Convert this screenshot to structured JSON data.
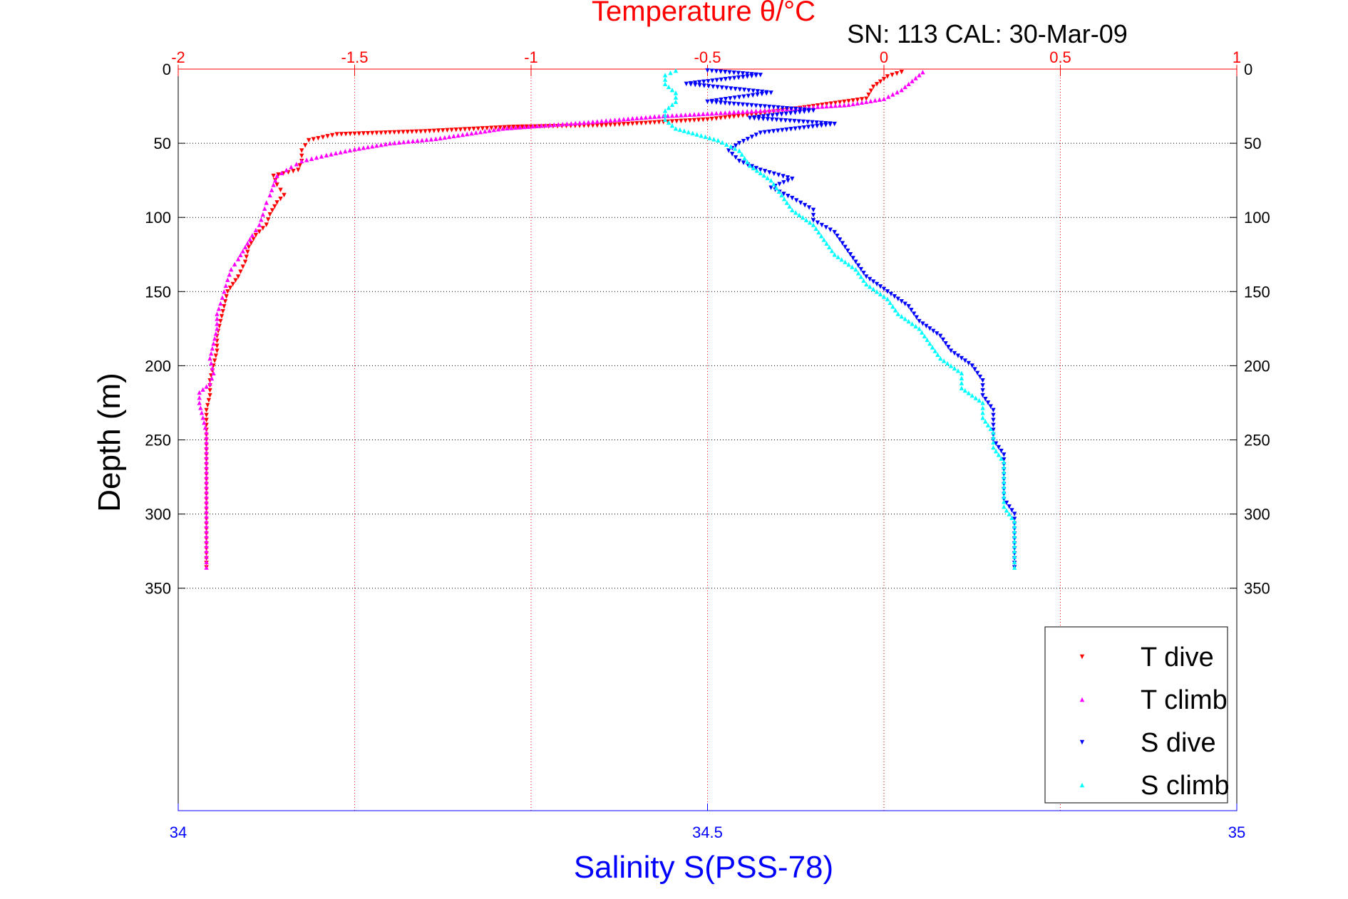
{
  "chart_data": {
    "type": "scatter",
    "title": "Temperature θ/°C",
    "subtitle": "SN: 113  CAL: 30-Mar-09",
    "ylabel": "Depth (m)",
    "xlabel_bottom": "Salinity S(PSS-78)",
    "top_axis": {
      "label": "Temperature θ/°C",
      "range": [
        -2,
        1
      ],
      "ticks": [
        -2,
        -1.5,
        -1,
        -0.5,
        0,
        0.5,
        1
      ],
      "tick_labels": [
        "-2",
        "-1.5",
        "-1",
        "-0.5",
        "0",
        "0.5",
        "1"
      ]
    },
    "bottom_axis": {
      "label": "Salinity S(PSS-78)",
      "range": [
        34,
        35
      ],
      "ticks": [
        34,
        34.5,
        35
      ],
      "tick_labels": [
        "34",
        "34.5",
        "35"
      ]
    },
    "y_axis": {
      "range": [
        0,
        500
      ],
      "reversed": true,
      "ticks": [
        0,
        50,
        100,
        150,
        200,
        250,
        300,
        350
      ],
      "tick_labels": [
        "0",
        "50",
        "100",
        "150",
        "200",
        "250",
        "300",
        "350"
      ]
    },
    "grid": true,
    "legend_position": "bottom-right",
    "series": [
      {
        "name": "T dive",
        "axis": "temperature",
        "color": "#ff0000",
        "marker": "triangle-down",
        "points": [
          [
            0.05,
            2
          ],
          [
            0.01,
            5
          ],
          [
            -0.03,
            12
          ],
          [
            -0.05,
            20
          ],
          [
            -0.2,
            25
          ],
          [
            -0.35,
            30
          ],
          [
            -0.5,
            34
          ],
          [
            -0.8,
            38
          ],
          [
            -1.05,
            39
          ],
          [
            -1.3,
            42
          ],
          [
            -1.55,
            44
          ],
          [
            -1.63,
            48
          ],
          [
            -1.65,
            55
          ],
          [
            -1.65,
            62
          ],
          [
            -1.66,
            68
          ],
          [
            -1.73,
            72
          ],
          [
            -1.72,
            78
          ],
          [
            -1.7,
            85
          ],
          [
            -1.72,
            90
          ],
          [
            -1.74,
            98
          ],
          [
            -1.75,
            105
          ],
          [
            -1.78,
            112
          ],
          [
            -1.8,
            120
          ],
          [
            -1.81,
            130
          ],
          [
            -1.83,
            140
          ],
          [
            -1.86,
            150
          ],
          [
            -1.87,
            160
          ],
          [
            -1.88,
            170
          ],
          [
            -1.89,
            180
          ],
          [
            -1.89,
            190
          ],
          [
            -1.9,
            200
          ],
          [
            -1.91,
            210
          ],
          [
            -1.91,
            220
          ],
          [
            -1.92,
            230
          ],
          [
            -1.92,
            240
          ],
          [
            -1.92,
            250
          ],
          [
            -1.92,
            260
          ],
          [
            -1.92,
            270
          ],
          [
            -1.92,
            280
          ],
          [
            -1.92,
            290
          ],
          [
            -1.92,
            300
          ],
          [
            -1.92,
            310
          ],
          [
            -1.92,
            320
          ],
          [
            -1.92,
            330
          ],
          [
            -1.92,
            336
          ]
        ]
      },
      {
        "name": "T climb",
        "axis": "temperature",
        "color": "#ff00ff",
        "marker": "triangle-up",
        "points": [
          [
            -1.92,
            336
          ],
          [
            -1.92,
            325
          ],
          [
            -1.92,
            315
          ],
          [
            -1.92,
            305
          ],
          [
            -1.92,
            295
          ],
          [
            -1.92,
            285
          ],
          [
            -1.92,
            275
          ],
          [
            -1.92,
            265
          ],
          [
            -1.92,
            255
          ],
          [
            -1.92,
            245
          ],
          [
            -1.93,
            235
          ],
          [
            -1.94,
            225
          ],
          [
            -1.94,
            218
          ],
          [
            -1.91,
            212
          ],
          [
            -1.9,
            205
          ],
          [
            -1.91,
            195
          ],
          [
            -1.9,
            185
          ],
          [
            -1.89,
            175
          ],
          [
            -1.89,
            165
          ],
          [
            -1.88,
            158
          ],
          [
            -1.87,
            150
          ],
          [
            -1.86,
            142
          ],
          [
            -1.85,
            135
          ],
          [
            -1.83,
            128
          ],
          [
            -1.81,
            120
          ],
          [
            -1.79,
            112
          ],
          [
            -1.77,
            105
          ],
          [
            -1.76,
            98
          ],
          [
            -1.75,
            90
          ],
          [
            -1.74,
            85
          ],
          [
            -1.73,
            78
          ],
          [
            -1.72,
            72
          ],
          [
            -1.68,
            66
          ],
          [
            -1.65,
            62
          ],
          [
            -1.58,
            58
          ],
          [
            -1.5,
            54
          ],
          [
            -1.4,
            50
          ],
          [
            -1.27,
            47
          ],
          [
            -1.08,
            40
          ],
          [
            -0.85,
            36
          ],
          [
            -0.65,
            32
          ],
          [
            -0.35,
            28
          ],
          [
            -0.1,
            24
          ],
          [
            0.0,
            20
          ],
          [
            0.05,
            14
          ],
          [
            0.08,
            8
          ],
          [
            0.11,
            2
          ]
        ]
      },
      {
        "name": "S dive",
        "axis": "salinity",
        "color": "#0000ff",
        "marker": "triangle-down",
        "points": [
          [
            34.5,
            1
          ],
          [
            34.55,
            4
          ],
          [
            34.48,
            10
          ],
          [
            34.56,
            16
          ],
          [
            34.5,
            22
          ],
          [
            34.6,
            28
          ],
          [
            34.54,
            33
          ],
          [
            34.62,
            37
          ],
          [
            34.55,
            43
          ],
          [
            34.53,
            50
          ],
          [
            34.52,
            55
          ],
          [
            34.53,
            62
          ],
          [
            34.55,
            68
          ],
          [
            34.58,
            74
          ],
          [
            34.56,
            80
          ],
          [
            34.58,
            87
          ],
          [
            34.6,
            95
          ],
          [
            34.6,
            102
          ],
          [
            34.62,
            110
          ],
          [
            34.63,
            120
          ],
          [
            34.64,
            130
          ],
          [
            34.65,
            140
          ],
          [
            34.67,
            150
          ],
          [
            34.69,
            160
          ],
          [
            34.7,
            170
          ],
          [
            34.72,
            180
          ],
          [
            34.73,
            190
          ],
          [
            34.75,
            200
          ],
          [
            34.76,
            210
          ],
          [
            34.76,
            220
          ],
          [
            34.77,
            230
          ],
          [
            34.77,
            240
          ],
          [
            34.77,
            250
          ],
          [
            34.78,
            260
          ],
          [
            34.78,
            270
          ],
          [
            34.78,
            280
          ],
          [
            34.78,
            290
          ],
          [
            34.79,
            300
          ],
          [
            34.79,
            310
          ],
          [
            34.79,
            320
          ],
          [
            34.79,
            330
          ],
          [
            34.79,
            336
          ]
        ]
      },
      {
        "name": "S climb",
        "axis": "salinity",
        "color": "#00ffff",
        "marker": "triangle-up",
        "points": [
          [
            34.79,
            336
          ],
          [
            34.79,
            325
          ],
          [
            34.79,
            315
          ],
          [
            34.79,
            305
          ],
          [
            34.78,
            295
          ],
          [
            34.78,
            285
          ],
          [
            34.78,
            275
          ],
          [
            34.78,
            265
          ],
          [
            34.77,
            255
          ],
          [
            34.77,
            245
          ],
          [
            34.76,
            235
          ],
          [
            34.76,
            225
          ],
          [
            34.74,
            215
          ],
          [
            34.74,
            205
          ],
          [
            34.72,
            195
          ],
          [
            34.71,
            185
          ],
          [
            34.7,
            175
          ],
          [
            34.68,
            165
          ],
          [
            34.67,
            155
          ],
          [
            34.65,
            145
          ],
          [
            34.64,
            135
          ],
          [
            34.62,
            125
          ],
          [
            34.61,
            115
          ],
          [
            34.6,
            105
          ],
          [
            34.58,
            95
          ],
          [
            34.57,
            85
          ],
          [
            34.56,
            75
          ],
          [
            34.54,
            65
          ],
          [
            34.53,
            55
          ],
          [
            34.51,
            48
          ],
          [
            34.47,
            40
          ],
          [
            34.46,
            34
          ],
          [
            34.46,
            28
          ],
          [
            34.47,
            22
          ],
          [
            34.47,
            16
          ],
          [
            34.46,
            10
          ],
          [
            34.46,
            4
          ],
          [
            34.47,
            1
          ]
        ]
      }
    ]
  }
}
